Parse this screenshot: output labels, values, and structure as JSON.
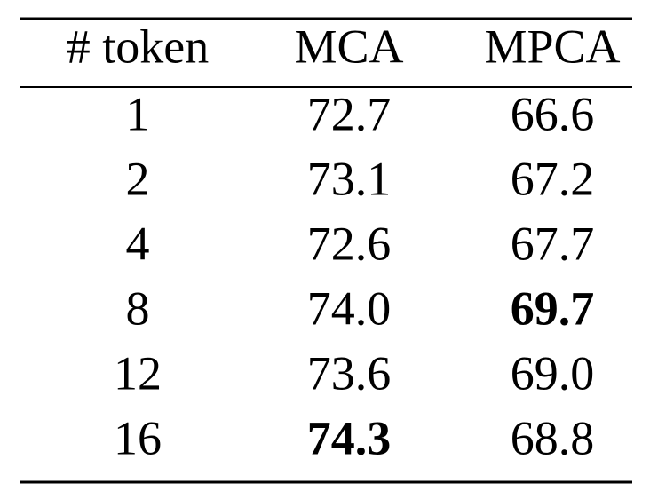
{
  "table": {
    "header": [
      "# token",
      "MCA",
      "MPCA"
    ],
    "rows": [
      [
        "1",
        "72.7",
        "66.6"
      ],
      [
        "2",
        "73.1",
        "67.2"
      ],
      [
        "4",
        "72.6",
        "67.7"
      ],
      [
        "8",
        "74.0",
        "69.7"
      ],
      [
        "12",
        "73.6",
        "69.0"
      ],
      [
        "16",
        "74.3",
        "68.8"
      ]
    ]
  }
}
